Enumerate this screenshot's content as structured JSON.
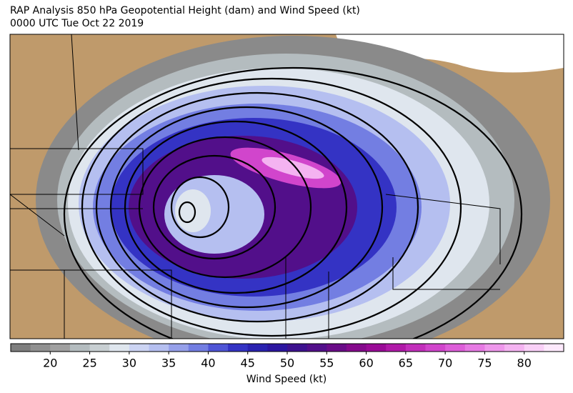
{
  "title": "RAP Analysis 850 hPa Geopotential Height (dam) and Wind Speed (kt)",
  "subtitle": "0000 UTC Tue Oct 22 2019",
  "colorbar": {
    "label": "Wind Speed (kt)",
    "lim": [
      15,
      85
    ],
    "ticks": [
      20,
      25,
      30,
      35,
      40,
      45,
      50,
      55,
      60,
      65,
      70,
      75,
      80
    ],
    "colors": [
      "#7e7e7e",
      "#909090",
      "#a0a0a0",
      "#b4bcbf",
      "#c8cfd2",
      "#dfe6ee",
      "#ccd4f3",
      "#b5bff0",
      "#96a0ea",
      "#737ee2",
      "#4f55d6",
      "#3433c4",
      "#2a22b0",
      "#2c16a0",
      "#3d128f",
      "#520f8a",
      "#6a0c88",
      "#850a8c",
      "#9a0b97",
      "#b01aa8",
      "#c22fbb",
      "#d145cc",
      "#dd5ed9",
      "#e67ae3",
      "#ee97eb",
      "#f4b3f1",
      "#f9d0f7",
      "#fde9fc"
    ]
  }
}
